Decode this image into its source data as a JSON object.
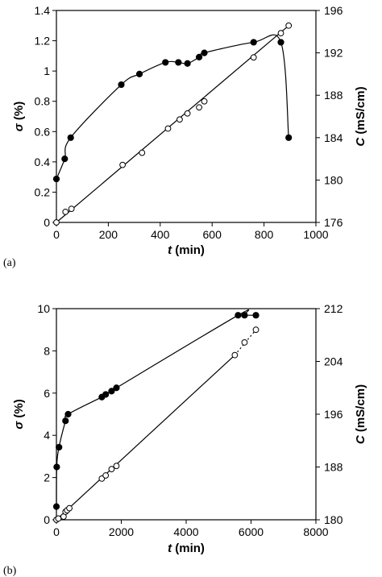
{
  "chart_data": [
    {
      "panel": "(a)",
      "type": "scatter",
      "xlabel_symbol": "t",
      "xlabel_unit": "(min)",
      "ylabel_left_symbol": "σ",
      "ylabel_left_unit": "(%)",
      "ylabel_right_symbol": "C",
      "ylabel_right_unit": "(mS/cm)",
      "xlim": [
        0,
        1000
      ],
      "ylim_left": [
        0,
        1.4
      ],
      "ylim_right": [
        176,
        196
      ],
      "x_ticks": [
        "0",
        "200",
        "400",
        "600",
        "800",
        "1000"
      ],
      "y_left_ticks": [
        "0",
        "0.2",
        "0.4",
        "0.6",
        "0.8",
        "1",
        "1.2",
        "1.4"
      ],
      "y_right_ticks": [
        "176",
        "180",
        "184",
        "188",
        "192",
        "196"
      ],
      "series": [
        {
          "axis": "right",
          "marker": "filled",
          "points": [
            [
              0,
              180.1
            ],
            [
              32,
              182
            ],
            [
              55,
              184
            ],
            [
              250,
              189
            ],
            [
              320,
              190
            ],
            [
              420,
              191.1
            ],
            [
              470,
              191.1
            ],
            [
              505,
              191
            ],
            [
              550,
              191.6
            ],
            [
              570,
              192
            ],
            [
              760,
              193
            ],
            [
              865,
              193
            ],
            [
              895,
              184
            ]
          ]
        },
        {
          "axis": "left",
          "marker": "open",
          "points": [
            [
              0,
              0.0
            ],
            [
              35,
              0.07
            ],
            [
              58,
              0.09
            ],
            [
              255,
              0.38
            ],
            [
              330,
              0.46
            ],
            [
              430,
              0.62
            ],
            [
              475,
              0.68
            ],
            [
              505,
              0.72
            ],
            [
              550,
              0.76
            ],
            [
              570,
              0.8
            ],
            [
              760,
              1.09
            ],
            [
              865,
              1.25
            ],
            [
              895,
              1.3
            ]
          ]
        }
      ]
    },
    {
      "panel": "(b)",
      "type": "scatter",
      "xlabel_symbol": "t",
      "xlabel_unit": "(min)",
      "ylabel_left_symbol": "σ",
      "ylabel_left_unit": "(%)",
      "ylabel_right_symbol": "C",
      "ylabel_right_unit": "(mS/cm)",
      "xlim": [
        0,
        8000
      ],
      "ylim_left": [
        0,
        10
      ],
      "ylim_right": [
        180,
        212
      ],
      "x_ticks": [
        "0",
        "2000",
        "4000",
        "6000",
        "8000"
      ],
      "y_left_ticks": [
        "0",
        "2",
        "4",
        "6",
        "8",
        "10"
      ],
      "y_right_ticks": [
        "180",
        "188",
        "196",
        "204",
        "212"
      ],
      "series": [
        {
          "axis": "right",
          "marker": "filled",
          "points": [
            [
              0,
              182
            ],
            [
              10,
              188
            ],
            [
              80,
              191
            ],
            [
              280,
              195
            ],
            [
              360,
              196
            ],
            [
              1400,
              198.6
            ],
            [
              1520,
              199
            ],
            [
              1700,
              199.5
            ],
            [
              1850,
              200
            ],
            [
              5600,
              211
            ],
            [
              5800,
              211
            ],
            [
              6150,
              211
            ]
          ]
        },
        {
          "axis": "left",
          "marker": "open",
          "points": [
            [
              0,
              0.0
            ],
            [
              60,
              0.06
            ],
            [
              220,
              0.15
            ],
            [
              280,
              0.38
            ],
            [
              330,
              0.45
            ],
            [
              400,
              0.55
            ],
            [
              1400,
              1.95
            ],
            [
              1520,
              2.1
            ],
            [
              1700,
              2.4
            ],
            [
              1850,
              2.55
            ],
            [
              5500,
              7.8
            ],
            [
              5800,
              8.4
            ],
            [
              6150,
              9.0
            ]
          ]
        }
      ]
    }
  ]
}
